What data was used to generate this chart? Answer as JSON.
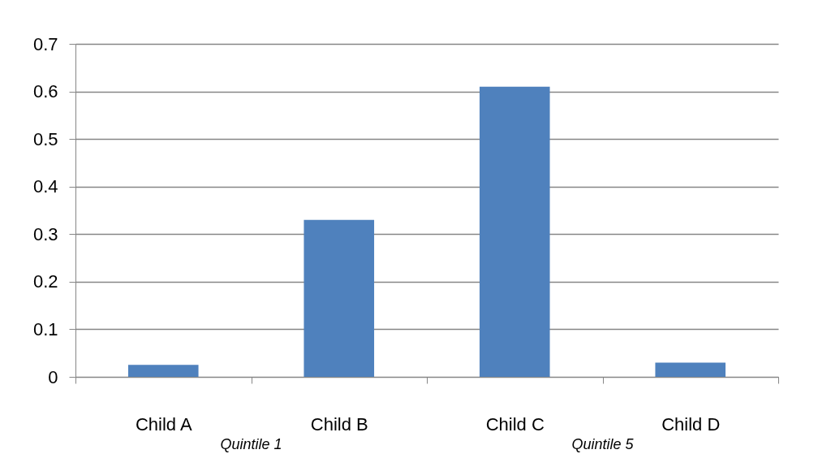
{
  "chart_data": {
    "type": "bar",
    "categories": [
      "Child A",
      "Child B",
      "Child C",
      "Child D"
    ],
    "values": [
      0.025,
      0.33,
      0.61,
      0.03
    ],
    "color": "#4f81bd",
    "ylim": [
      0,
      0.7
    ],
    "yticks": [
      0,
      0.1,
      0.2,
      0.3,
      0.4,
      0.5,
      0.6,
      0.7
    ],
    "grid": "y",
    "annotations": [
      "Quintile 1",
      "Quintile 5"
    ]
  }
}
